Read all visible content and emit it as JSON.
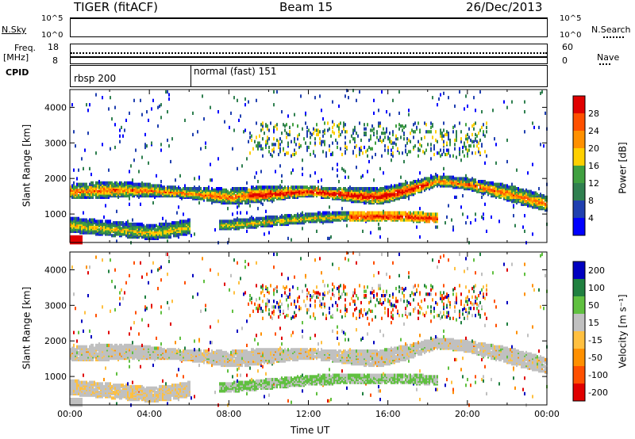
{
  "header": {
    "title": "TIGER (fitACF)",
    "beam": "Beam 15",
    "date": "26/Dec/2013"
  },
  "strips": {
    "nsky": {
      "label": "N.Sky",
      "ticks": [
        "10^5",
        "10^0"
      ]
    },
    "nsearch": {
      "label": "N.Search",
      "ticks": [
        "10^5",
        "10^0"
      ]
    },
    "freq": {
      "label_line1": "Freq.",
      "label_line2": "[MHz]",
      "ticks": [
        "18",
        "8"
      ]
    },
    "nave": {
      "label": "Nave",
      "ticks": [
        "60",
        "0"
      ]
    },
    "cpid": {
      "label": "CPID",
      "modes": [
        {
          "name": "rbsp 200",
          "start_hour": 0
        },
        {
          "name": "normal (fast) 151",
          "start_hour": 6.1
        }
      ]
    }
  },
  "colors": {
    "power": [
      "#0000ff",
      "#2040b0",
      "#308050",
      "#40a040",
      "#ffd000",
      "#ff9000",
      "#ff5000",
      "#e00000"
    ],
    "velocity": [
      "#e00000",
      "#ff5000",
      "#ff9000",
      "#ffc040",
      "#c0c0c0",
      "#60c040",
      "#208040",
      "#0000c0"
    ]
  },
  "chart_data": [
    {
      "type": "heatmap",
      "name": "power",
      "xlabel": "",
      "ylabel": "Slant Range [km]",
      "xlim": [
        0,
        24
      ],
      "ylim": [
        200,
        4500
      ],
      "yticks": [
        1000,
        2000,
        3000,
        4000
      ],
      "colorbar": {
        "label": "Power [dB]",
        "ticks": [
          "28",
          "24",
          "20",
          "16",
          "12",
          "8",
          "4"
        ],
        "range": [
          0,
          32
        ]
      },
      "features": [
        {
          "desc": "main band",
          "x": [
            0.5,
            2,
            4,
            6,
            8,
            10,
            12,
            14,
            15.5,
            17,
            18.5,
            20,
            22,
            24
          ],
          "y": [
            1650,
            1700,
            1680,
            1600,
            1500,
            1580,
            1650,
            1550,
            1500,
            1700,
            1950,
            1850,
            1600,
            1300
          ]
        },
        {
          "desc": "lower band",
          "x": [
            0,
            1,
            2,
            3,
            4,
            5,
            6
          ],
          "y": [
            700,
            650,
            600,
            550,
            500,
            550,
            650
          ]
        },
        {
          "desc": "near range band",
          "x": [
            8,
            10,
            12,
            14,
            16,
            17,
            18
          ],
          "y": [
            700,
            800,
            900,
            950,
            950,
            950,
            900
          ]
        }
      ]
    },
    {
      "type": "heatmap",
      "name": "velocity",
      "xlabel": "Time UT",
      "ylabel": "Slant Range [km]",
      "xlim": [
        0,
        24
      ],
      "ylim": [
        200,
        4500
      ],
      "xticks": [
        "00:00",
        "04:00",
        "08:00",
        "12:00",
        "16:00",
        "20:00",
        "00:00"
      ],
      "yticks": [
        1000,
        2000,
        3000,
        4000
      ],
      "colorbar": {
        "label": "Velocity [m s⁻¹]",
        "ticks": [
          "200",
          "100",
          "50",
          "15",
          "-15",
          "-50",
          "-100",
          "-200"
        ]
      }
    }
  ]
}
